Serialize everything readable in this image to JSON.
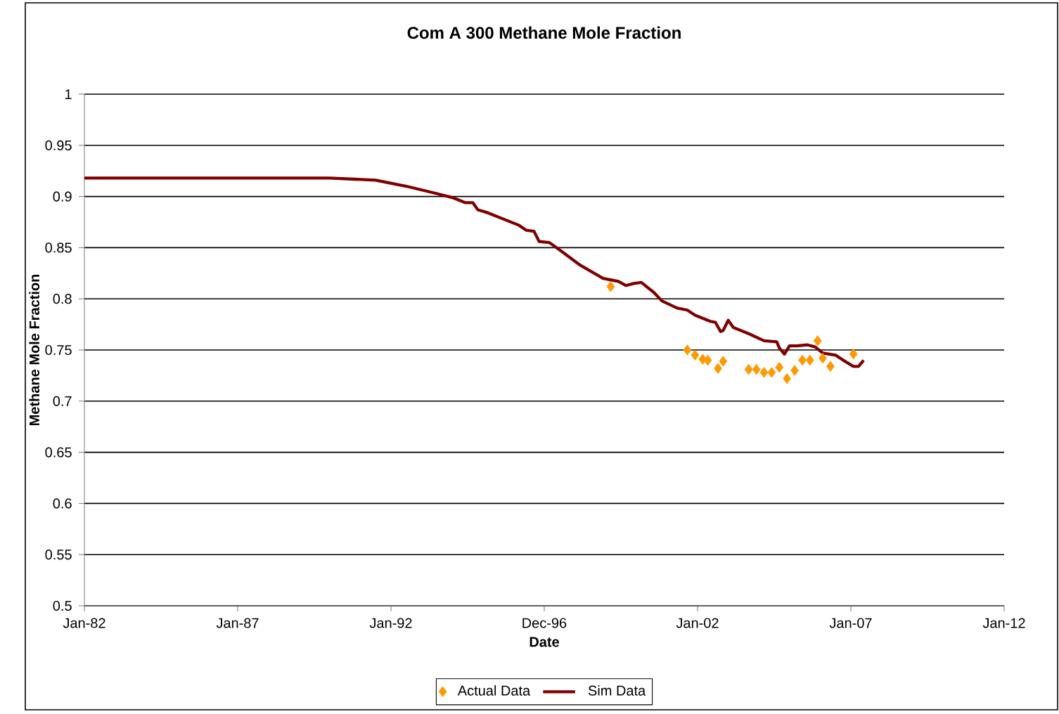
{
  "chart_data": {
    "type": "line",
    "title": "Com A 300 Methane Mole Fraction",
    "xlabel": "Date",
    "ylabel": "Methane Mole Fraction",
    "xlim": [
      "1982-01",
      "2012-01"
    ],
    "xticks": [
      {
        "value": "1982-01",
        "label": "Jan-82"
      },
      {
        "value": "1987-01",
        "label": "Jan-87"
      },
      {
        "value": "1992-01",
        "label": "Jan-92"
      },
      {
        "value": "1996-12-31",
        "label": "Dec-96"
      },
      {
        "value": "2002-01",
        "label": "Jan-02"
      },
      {
        "value": "2007-01",
        "label": "Jan-07"
      },
      {
        "value": "2012-01",
        "label": "Jan-12"
      }
    ],
    "ylim": [
      0.5,
      1
    ],
    "yticks": [
      0.5,
      0.55,
      0.6,
      0.65,
      0.7,
      0.75,
      0.8,
      0.85,
      0.9,
      0.95,
      1
    ],
    "grid": "y",
    "legend": "bottom",
    "series": [
      {
        "name": "Actual Data",
        "type": "scatter",
        "marker": "diamond",
        "color": "#ff9900",
        "x": [
          "1999-03",
          "2001-09",
          "2001-12",
          "2002-03",
          "2002-05",
          "2002-09",
          "2002-11",
          "2003-09",
          "2003-12",
          "2004-03",
          "2004-06",
          "2004-09",
          "2004-12",
          "2005-03",
          "2005-06",
          "2005-09",
          "2005-12",
          "2006-02",
          "2006-05",
          "2007-02"
        ],
        "values": [
          0.812,
          0.75,
          0.745,
          0.741,
          0.74,
          0.732,
          0.739,
          0.731,
          0.731,
          0.728,
          0.728,
          0.733,
          0.722,
          0.73,
          0.74,
          0.74,
          0.759,
          0.742,
          0.734,
          0.746
        ]
      },
      {
        "name": "Sim Data",
        "marker": "none",
        "color": "#800000",
        "x": [
          "1982-01",
          "1990-01",
          "1991-07",
          "1992-07",
          "1993-05",
          "1994-01",
          "1994-06",
          "1994-09",
          "1994-11",
          "1995-03",
          "1995-07",
          "1996-03",
          "1996-06",
          "1996-09",
          "1996-11",
          "1997-03",
          "1997-08",
          "1998-03",
          "1998-12",
          "1999-06",
          "1999-09",
          "1999-12",
          "2000-03",
          "2000-08",
          "2000-11",
          "2001-05",
          "2001-09",
          "2001-12",
          "2002-06",
          "2002-08",
          "2002-10",
          "2002-11",
          "2003-01",
          "2003-03",
          "2003-09",
          "2004-03",
          "2004-08",
          "2004-09",
          "2004-11",
          "2005-01",
          "2005-04",
          "2005-08",
          "2005-11",
          "2006-02",
          "2006-07",
          "2006-10",
          "2007-02",
          "2007-04",
          "2007-06"
        ],
        "values": [
          0.918,
          0.918,
          0.916,
          0.91,
          0.904,
          0.899,
          0.894,
          0.894,
          0.887,
          0.884,
          0.88,
          0.872,
          0.867,
          0.866,
          0.856,
          0.855,
          0.846,
          0.833,
          0.82,
          0.817,
          0.813,
          0.815,
          0.816,
          0.806,
          0.798,
          0.791,
          0.789,
          0.784,
          0.778,
          0.777,
          0.768,
          0.769,
          0.779,
          0.772,
          0.766,
          0.759,
          0.758,
          0.752,
          0.746,
          0.754,
          0.754,
          0.755,
          0.753,
          0.747,
          0.745,
          0.74,
          0.734,
          0.734,
          0.74
        ]
      }
    ]
  }
}
